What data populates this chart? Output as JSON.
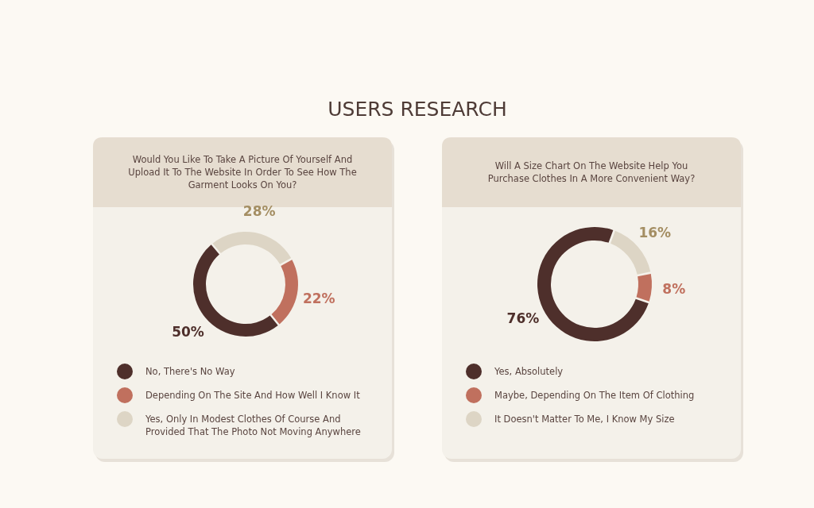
{
  "chart_data": [
    {
      "type": "donut",
      "title": "Would You Like To Take A Picture Of Yourself And Upload It To The Website In Order To See How The Garment Looks On You?",
      "annotations": [
        "USERS RESEARCH"
      ],
      "categories": [
        "No, There's No Way",
        "Depending On The Site And How Well I Know It",
        "Yes, Only In Modest Clothes Of Course And Provided That The Photo Not Moving Anywhere"
      ],
      "values": [
        50,
        22,
        28
      ],
      "value_labels": [
        "50%",
        "22%",
        "28%"
      ],
      "colors": [
        "#4e2f2b",
        "#c0705e",
        "#ddd5c5"
      ],
      "legend": "bottom"
    },
    {
      "type": "donut",
      "title": "Will A Size Chart On The Website Help You Purchase Clothes In A More Convenient Way?",
      "categories": [
        "Yes, Absolutely",
        "Maybe, Depending On The Item Of Clothing",
        "It Doesn't Matter To Me, I Know My Size"
      ],
      "values": [
        76,
        8,
        16
      ],
      "value_labels": [
        "76%",
        "8%",
        "16%"
      ],
      "colors": [
        "#4e2f2b",
        "#c0705e",
        "#ddd5c5"
      ],
      "legend": "bottom"
    }
  ]
}
